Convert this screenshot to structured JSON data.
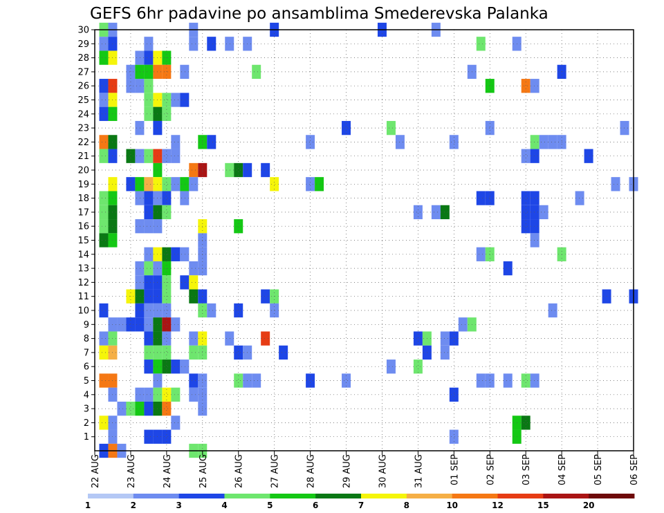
{
  "chart_data": {
    "type": "heatmap",
    "title": "GEFS 6hr padavine po ansamblima Smederevska Palanka",
    "x_tick_labels": [
      "22 AUG",
      "23 AUG",
      "24 AUG",
      "25 AUG",
      "26 AUG",
      "27 AUG",
      "28 AUG",
      "29 AUG",
      "30 AUG",
      "31 AUG",
      "01 SEP",
      "02 SEP",
      "03 SEP",
      "04 SEP",
      "05 SEP",
      "06 SEP"
    ],
    "y_tick_labels": [
      "1",
      "2",
      "3",
      "4",
      "5",
      "6",
      "7",
      "8",
      "9",
      "10",
      "11",
      "12",
      "13",
      "14",
      "15",
      "16",
      "17",
      "18",
      "19",
      "20",
      "21",
      "22",
      "23",
      "24",
      "25",
      "26",
      "27",
      "28",
      "29",
      "30"
    ],
    "x_unit": "6-hour step",
    "x_range": [
      0,
      60
    ],
    "y_range": [
      0,
      30
    ],
    "grid": true,
    "colorbar": {
      "labels": [
        "1",
        "2",
        "3",
        "4",
        "5",
        "6",
        "7",
        "8",
        "10",
        "12",
        "15",
        "20"
      ],
      "colors": [
        "#b4c8f5",
        "#6e8cf0",
        "#1e46e6",
        "#6ee66e",
        "#14c814",
        "#0a7814",
        "#f5f50a",
        "#f5af46",
        "#f57814",
        "#e63c14",
        "#aa1414",
        "#6e0a0a"
      ]
    },
    "cells": [
      [
        1,
        30,
        3
      ],
      [
        2,
        30,
        1
      ],
      [
        11,
        30,
        1
      ],
      [
        20,
        30,
        2
      ],
      [
        32,
        30,
        2
      ],
      [
        38,
        30,
        1
      ],
      [
        1,
        29,
        1
      ],
      [
        2,
        29,
        2
      ],
      [
        6,
        29,
        1
      ],
      [
        11,
        29,
        1
      ],
      [
        13,
        29,
        2
      ],
      [
        15,
        29,
        1
      ],
      [
        17,
        29,
        1
      ],
      [
        43,
        29,
        3
      ],
      [
        47,
        29,
        1
      ],
      [
        1,
        28,
        4
      ],
      [
        2,
        28,
        6
      ],
      [
        5,
        28,
        1
      ],
      [
        6,
        28,
        2
      ],
      [
        7,
        28,
        6
      ],
      [
        8,
        28,
        4
      ],
      [
        4,
        27,
        1
      ],
      [
        5,
        27,
        4
      ],
      [
        6,
        27,
        4
      ],
      [
        7,
        27,
        8
      ],
      [
        8,
        27,
        8
      ],
      [
        10,
        27,
        1
      ],
      [
        18,
        27,
        3
      ],
      [
        42,
        27,
        1
      ],
      [
        52,
        27,
        2
      ],
      [
        1,
        26,
        2
      ],
      [
        2,
        26,
        9
      ],
      [
        4,
        26,
        1
      ],
      [
        5,
        26,
        1
      ],
      [
        6,
        26,
        3
      ],
      [
        44,
        26,
        4
      ],
      [
        48,
        26,
        8
      ],
      [
        49,
        26,
        1
      ],
      [
        1,
        25,
        1
      ],
      [
        2,
        25,
        6
      ],
      [
        6,
        25,
        3
      ],
      [
        7,
        25,
        6
      ],
      [
        8,
        25,
        3
      ],
      [
        9,
        25,
        1
      ],
      [
        10,
        25,
        2
      ],
      [
        1,
        24,
        2
      ],
      [
        2,
        24,
        4
      ],
      [
        6,
        24,
        3
      ],
      [
        7,
        24,
        5
      ],
      [
        8,
        24,
        3
      ],
      [
        5,
        23,
        1
      ],
      [
        7,
        23,
        2
      ],
      [
        28,
        23,
        2
      ],
      [
        33,
        23,
        3
      ],
      [
        44,
        23,
        1
      ],
      [
        59,
        23,
        1
      ],
      [
        1,
        22,
        8
      ],
      [
        2,
        22,
        5
      ],
      [
        9,
        22,
        1
      ],
      [
        12,
        22,
        4
      ],
      [
        13,
        22,
        2
      ],
      [
        24,
        22,
        1
      ],
      [
        34,
        22,
        1
      ],
      [
        40,
        22,
        1
      ],
      [
        49,
        22,
        3
      ],
      [
        50,
        22,
        1
      ],
      [
        51,
        22,
        1
      ],
      [
        52,
        22,
        1
      ],
      [
        1,
        21,
        3
      ],
      [
        2,
        21,
        2
      ],
      [
        4,
        21,
        5
      ],
      [
        5,
        21,
        1
      ],
      [
        6,
        21,
        3
      ],
      [
        7,
        21,
        9
      ],
      [
        8,
        21,
        1
      ],
      [
        9,
        21,
        1
      ],
      [
        48,
        21,
        1
      ],
      [
        49,
        21,
        2
      ],
      [
        55,
        21,
        2
      ],
      [
        7,
        20,
        4
      ],
      [
        11,
        20,
        8
      ],
      [
        12,
        20,
        10
      ],
      [
        15,
        20,
        3
      ],
      [
        16,
        20,
        5
      ],
      [
        17,
        20,
        2
      ],
      [
        19,
        20,
        2
      ],
      [
        2,
        19,
        6
      ],
      [
        4,
        19,
        2
      ],
      [
        5,
        19,
        4
      ],
      [
        6,
        19,
        7
      ],
      [
        7,
        19,
        6
      ],
      [
        8,
        19,
        3
      ],
      [
        9,
        19,
        1
      ],
      [
        10,
        19,
        4
      ],
      [
        11,
        19,
        1
      ],
      [
        20,
        19,
        6
      ],
      [
        24,
        19,
        1
      ],
      [
        25,
        19,
        4
      ],
      [
        58,
        19,
        1
      ],
      [
        60,
        19,
        1
      ],
      [
        1,
        18,
        3
      ],
      [
        2,
        18,
        4
      ],
      [
        5,
        18,
        1
      ],
      [
        6,
        18,
        2
      ],
      [
        7,
        18,
        1
      ],
      [
        8,
        18,
        2
      ],
      [
        10,
        18,
        1
      ],
      [
        43,
        18,
        2
      ],
      [
        44,
        18,
        2
      ],
      [
        48,
        18,
        2
      ],
      [
        49,
        18,
        2
      ],
      [
        54,
        18,
        1
      ],
      [
        1,
        17,
        3
      ],
      [
        2,
        17,
        5
      ],
      [
        6,
        17,
        2
      ],
      [
        7,
        17,
        5
      ],
      [
        8,
        17,
        3
      ],
      [
        36,
        17,
        1
      ],
      [
        38,
        17,
        1
      ],
      [
        39,
        17,
        5
      ],
      [
        48,
        17,
        2
      ],
      [
        49,
        17,
        2
      ],
      [
        50,
        17,
        1
      ],
      [
        1,
        16,
        3
      ],
      [
        2,
        16,
        5
      ],
      [
        5,
        16,
        1
      ],
      [
        6,
        16,
        1
      ],
      [
        7,
        16,
        1
      ],
      [
        12,
        16,
        6
      ],
      [
        16,
        16,
        4
      ],
      [
        48,
        16,
        2
      ],
      [
        49,
        16,
        2
      ],
      [
        1,
        15,
        5
      ],
      [
        2,
        15,
        4
      ],
      [
        12,
        15,
        1
      ],
      [
        49,
        15,
        1
      ],
      [
        6,
        14,
        1
      ],
      [
        7,
        14,
        6
      ],
      [
        8,
        14,
        5
      ],
      [
        9,
        14,
        2
      ],
      [
        10,
        14,
        1
      ],
      [
        12,
        14,
        1
      ],
      [
        43,
        14,
        1
      ],
      [
        44,
        14,
        3
      ],
      [
        52,
        14,
        3
      ],
      [
        5,
        13,
        1
      ],
      [
        6,
        13,
        3
      ],
      [
        7,
        13,
        1
      ],
      [
        8,
        13,
        4
      ],
      [
        11,
        13,
        1
      ],
      [
        12,
        13,
        1
      ],
      [
        46,
        13,
        2
      ],
      [
        5,
        12,
        1
      ],
      [
        6,
        12,
        2
      ],
      [
        7,
        12,
        2
      ],
      [
        8,
        12,
        3
      ],
      [
        10,
        12,
        2
      ],
      [
        11,
        12,
        6
      ],
      [
        4,
        11,
        6
      ],
      [
        5,
        11,
        5
      ],
      [
        6,
        11,
        2
      ],
      [
        7,
        11,
        2
      ],
      [
        8,
        11,
        3
      ],
      [
        11,
        11,
        5
      ],
      [
        12,
        11,
        2
      ],
      [
        19,
        11,
        2
      ],
      [
        20,
        11,
        3
      ],
      [
        57,
        11,
        2
      ],
      [
        60,
        11,
        2
      ],
      [
        1,
        10,
        2
      ],
      [
        5,
        10,
        2
      ],
      [
        6,
        10,
        1
      ],
      [
        7,
        10,
        1
      ],
      [
        8,
        10,
        1
      ],
      [
        12,
        10,
        3
      ],
      [
        13,
        10,
        1
      ],
      [
        16,
        10,
        2
      ],
      [
        20,
        10,
        1
      ],
      [
        51,
        10,
        1
      ],
      [
        2,
        9,
        1
      ],
      [
        3,
        9,
        1
      ],
      [
        4,
        9,
        2
      ],
      [
        5,
        9,
        2
      ],
      [
        6,
        9,
        1
      ],
      [
        7,
        9,
        5
      ],
      [
        8,
        9,
        10
      ],
      [
        9,
        9,
        1
      ],
      [
        41,
        9,
        1
      ],
      [
        42,
        9,
        3
      ],
      [
        1,
        8,
        1
      ],
      [
        2,
        8,
        3
      ],
      [
        6,
        8,
        2
      ],
      [
        7,
        8,
        5
      ],
      [
        8,
        8,
        1
      ],
      [
        11,
        8,
        1
      ],
      [
        12,
        8,
        6
      ],
      [
        15,
        8,
        1
      ],
      [
        19,
        8,
        9
      ],
      [
        36,
        8,
        2
      ],
      [
        37,
        8,
        3
      ],
      [
        39,
        8,
        1
      ],
      [
        40,
        8,
        2
      ],
      [
        1,
        7,
        6
      ],
      [
        2,
        7,
        7
      ],
      [
        6,
        7,
        3
      ],
      [
        7,
        7,
        3
      ],
      [
        8,
        7,
        3
      ],
      [
        11,
        7,
        3
      ],
      [
        12,
        7,
        3
      ],
      [
        16,
        7,
        2
      ],
      [
        17,
        7,
        1
      ],
      [
        21,
        7,
        2
      ],
      [
        37,
        7,
        2
      ],
      [
        39,
        7,
        1
      ],
      [
        6,
        6,
        2
      ],
      [
        7,
        6,
        4
      ],
      [
        8,
        6,
        5
      ],
      [
        9,
        6,
        2
      ],
      [
        10,
        6,
        1
      ],
      [
        33,
        6,
        1
      ],
      [
        36,
        6,
        3
      ],
      [
        1,
        5,
        8
      ],
      [
        2,
        5,
        8
      ],
      [
        7,
        5,
        1
      ],
      [
        11,
        5,
        2
      ],
      [
        12,
        5,
        1
      ],
      [
        16,
        5,
        3
      ],
      [
        17,
        5,
        1
      ],
      [
        18,
        5,
        1
      ],
      [
        24,
        5,
        2
      ],
      [
        28,
        5,
        1
      ],
      [
        43,
        5,
        1
      ],
      [
        44,
        5,
        1
      ],
      [
        46,
        5,
        1
      ],
      [
        48,
        5,
        3
      ],
      [
        49,
        5,
        1
      ],
      [
        2,
        4,
        1
      ],
      [
        5,
        4,
        1
      ],
      [
        6,
        4,
        1
      ],
      [
        7,
        4,
        3
      ],
      [
        8,
        4,
        6
      ],
      [
        9,
        4,
        3
      ],
      [
        11,
        4,
        1
      ],
      [
        12,
        4,
        1
      ],
      [
        40,
        4,
        2
      ],
      [
        3,
        3,
        1
      ],
      [
        4,
        3,
        3
      ],
      [
        5,
        3,
        4
      ],
      [
        6,
        3,
        2
      ],
      [
        7,
        3,
        5
      ],
      [
        8,
        3,
        8
      ],
      [
        12,
        3,
        1
      ],
      [
        1,
        2,
        6
      ],
      [
        2,
        2,
        1
      ],
      [
        9,
        2,
        1
      ],
      [
        47,
        2,
        4
      ],
      [
        48,
        2,
        5
      ],
      [
        2,
        1,
        1
      ],
      [
        6,
        1,
        2
      ],
      [
        7,
        1,
        2
      ],
      [
        8,
        1,
        2
      ],
      [
        40,
        1,
        1
      ],
      [
        47,
        1,
        4
      ],
      [
        1,
        0,
        2
      ],
      [
        2,
        0,
        8
      ],
      [
        3,
        0,
        1
      ],
      [
        11,
        0,
        3
      ],
      [
        12,
        0,
        3
      ]
    ]
  }
}
